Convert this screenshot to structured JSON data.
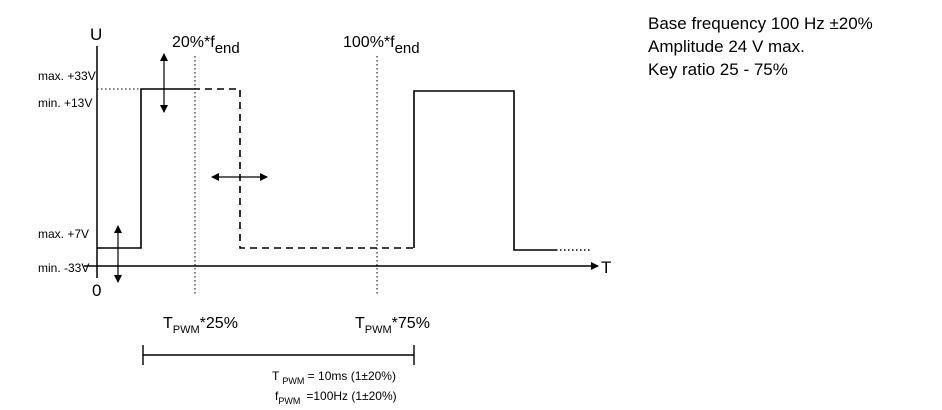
{
  "axes": {
    "y_label": "U",
    "x_label": "T",
    "origin": "0"
  },
  "y_levels": {
    "max_high": "max. +33V",
    "min_high": "min. +13V",
    "max_low": "max. +7V",
    "min_low": "min. -33V"
  },
  "markers": {
    "f20": {
      "prefix": "20%*f",
      "sub": "end"
    },
    "f100": {
      "prefix": "100%*f",
      "sub": "end"
    },
    "t25": {
      "main": "T",
      "sub": "PWM",
      "suffix": "*25%"
    },
    "t75": {
      "main": "T",
      "sub": "PWM",
      "suffix": "*75%"
    }
  },
  "formulas": {
    "period": {
      "main": "T",
      "sub": "PWM",
      "rest": " = 10ms (1±20%)"
    },
    "freq": {
      "main": "f",
      "sub": "PWM",
      "rest": "=100Hz (1±20%)"
    }
  },
  "specs": [
    "Base frequency 100 Hz ±20%",
    "Amplitude 24 V max.",
    "Key ratio 25 - 75%"
  ]
}
